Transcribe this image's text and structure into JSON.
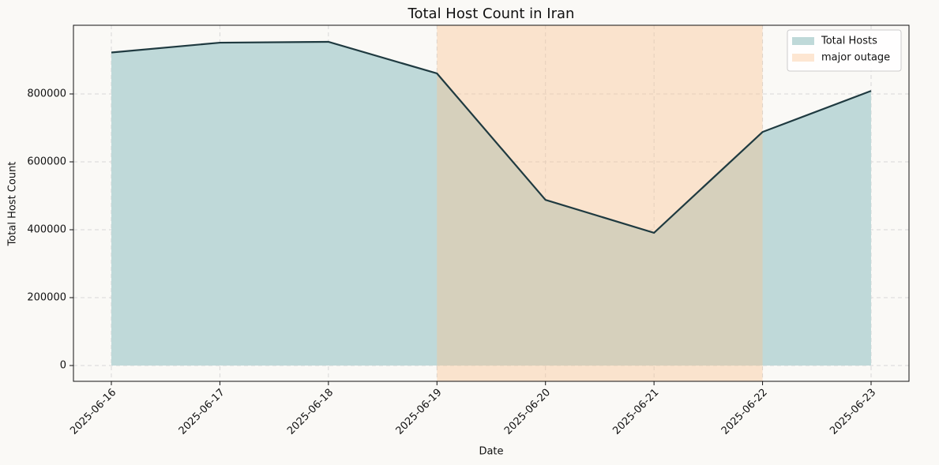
{
  "chart_data": {
    "type": "area",
    "title": "Total Host Count in Iran",
    "x_label": "Date",
    "y_label": "Total Host Count",
    "x": [
      "2025-06-16",
      "2025-06-17",
      "2025-06-18",
      "2025-06-19",
      "2025-06-20",
      "2025-06-21",
      "2025-06-22",
      "2025-06-23"
    ],
    "series": [
      {
        "name": "Total Hosts",
        "color": "#bfd9d9",
        "line_color": "#1f3a40",
        "values": [
          922000,
          951000,
          953500,
          860500,
          488000,
          391000,
          688000,
          809000
        ]
      }
    ],
    "spans": [
      {
        "name": "major outage",
        "start": "2025-06-19",
        "end": "2025-06-22",
        "color": "#fbc291",
        "alpha": 0.4
      }
    ],
    "ylim": [
      -46500,
      1002300
    ],
    "yticks": [
      0,
      200000,
      400000,
      600000,
      800000
    ],
    "grid": true,
    "legend": "upper right"
  }
}
